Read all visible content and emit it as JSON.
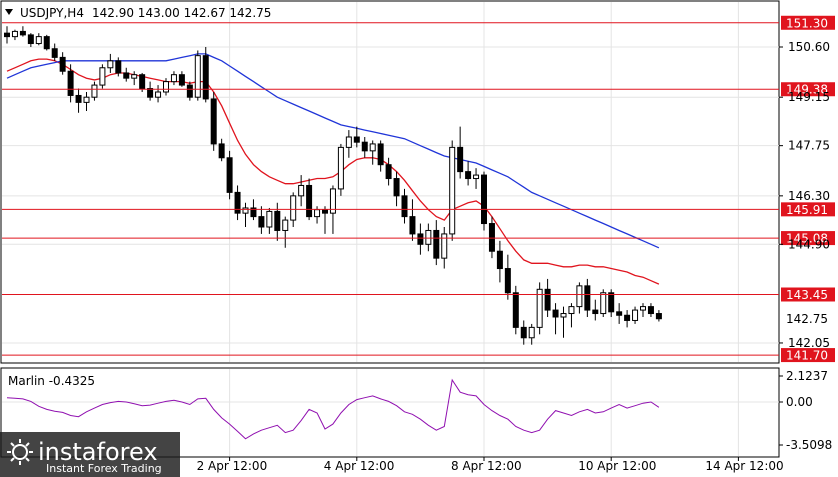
{
  "header": {
    "symbol": "USDJPY,H4",
    "ohlc": "142.90 143.00 142.67 142.75"
  },
  "indicator": {
    "label": "Marlin -0.4325",
    "scale_labels": [
      "2.1237",
      "0.00",
      "-3.5098"
    ],
    "range": [
      -3.5098,
      2.1237
    ]
  },
  "watermark": {
    "brand": "instaforex",
    "tagline": "Instant Forex Trading"
  },
  "chart_data": {
    "type": "candlestick",
    "title": "",
    "ylim": [
      141.5,
      151.9
    ],
    "y_tick_labels": [
      "150.60",
      "149.15",
      "147.75",
      "146.30",
      "144.90",
      "142.05"
    ],
    "x_tick_labels": [
      "2 Apr 12:00",
      "4 Apr 12:00",
      "8 Apr 12:00",
      "10 Apr 12:00",
      "14 Apr 12:00"
    ],
    "x_tick_index": [
      28,
      44,
      60,
      76,
      92
    ],
    "current_price": 142.75,
    "levels": [
      {
        "value": 151.3,
        "label": "151.30",
        "color": "#e0141e"
      },
      {
        "value": 149.38,
        "label": "149.38",
        "color": "#e0141e"
      },
      {
        "value": 145.91,
        "label": "145.91",
        "color": "#e0141e"
      },
      {
        "value": 145.08,
        "label": "145.08",
        "color": "#e0141e"
      },
      {
        "value": 143.45,
        "label": "143.45",
        "color": "#e0141e"
      },
      {
        "value": 141.7,
        "label": "141.70",
        "color": "#e0141e"
      }
    ],
    "candles": [
      [
        151.0,
        151.2,
        150.7,
        150.9
      ],
      [
        150.9,
        151.1,
        150.8,
        151.05
      ],
      [
        151.05,
        151.2,
        150.9,
        150.95
      ],
      [
        150.95,
        151.0,
        150.6,
        150.7
      ],
      [
        150.7,
        151.0,
        150.65,
        150.9
      ],
      [
        150.9,
        150.95,
        150.5,
        150.55
      ],
      [
        150.55,
        150.7,
        150.2,
        150.3
      ],
      [
        150.3,
        150.45,
        149.8,
        149.9
      ],
      [
        149.9,
        150.1,
        149.0,
        149.2
      ],
      [
        149.2,
        149.4,
        148.7,
        149.0
      ],
      [
        149.0,
        149.3,
        148.75,
        149.15
      ],
      [
        149.15,
        149.6,
        149.05,
        149.5
      ],
      [
        149.5,
        150.1,
        149.4,
        150.0
      ],
      [
        150.0,
        150.4,
        149.85,
        150.2
      ],
      [
        150.2,
        150.3,
        149.75,
        149.85
      ],
      [
        149.85,
        150.0,
        149.6,
        149.7
      ],
      [
        149.7,
        149.9,
        149.5,
        149.8
      ],
      [
        149.8,
        149.85,
        149.3,
        149.4
      ],
      [
        149.4,
        149.6,
        149.05,
        149.15
      ],
      [
        149.15,
        149.5,
        149.0,
        149.3
      ],
      [
        149.3,
        149.7,
        149.2,
        149.6
      ],
      [
        149.6,
        149.9,
        149.5,
        149.8
      ],
      [
        149.8,
        149.9,
        149.45,
        149.5
      ],
      [
        149.5,
        149.6,
        149.05,
        149.15
      ],
      [
        149.15,
        150.5,
        149.05,
        150.35
      ],
      [
        150.35,
        150.6,
        149.0,
        149.1
      ],
      [
        149.1,
        149.3,
        147.6,
        147.8
      ],
      [
        147.8,
        147.95,
        147.3,
        147.4
      ],
      [
        147.4,
        147.6,
        146.2,
        146.4
      ],
      [
        146.4,
        146.6,
        145.6,
        145.8
      ],
      [
        145.8,
        146.1,
        145.4,
        145.95
      ],
      [
        145.95,
        146.2,
        145.6,
        145.7
      ],
      [
        145.7,
        146.0,
        145.2,
        145.4
      ],
      [
        145.4,
        145.95,
        145.2,
        145.85
      ],
      [
        145.85,
        146.1,
        145.0,
        145.3
      ],
      [
        145.3,
        145.7,
        144.8,
        145.6
      ],
      [
        145.6,
        146.4,
        145.4,
        146.3
      ],
      [
        146.3,
        146.9,
        146.0,
        146.6
      ],
      [
        146.6,
        146.8,
        145.6,
        145.7
      ],
      [
        145.7,
        146.0,
        145.5,
        145.9
      ],
      [
        145.9,
        146.0,
        145.2,
        145.8
      ],
      [
        145.8,
        146.6,
        145.2,
        146.5
      ],
      [
        146.5,
        147.8,
        146.3,
        147.7
      ],
      [
        147.7,
        148.2,
        147.4,
        148.0
      ],
      [
        148.0,
        148.3,
        147.7,
        147.85
      ],
      [
        147.85,
        148.0,
        147.4,
        147.6
      ],
      [
        147.6,
        147.9,
        147.2,
        147.8
      ],
      [
        147.8,
        147.9,
        147.0,
        147.2
      ],
      [
        147.2,
        147.4,
        146.6,
        146.8
      ],
      [
        146.8,
        147.0,
        146.0,
        146.3
      ],
      [
        146.3,
        146.5,
        145.5,
        145.7
      ],
      [
        145.7,
        146.2,
        145.0,
        145.2
      ],
      [
        145.2,
        145.5,
        144.6,
        144.9
      ],
      [
        144.9,
        145.5,
        144.7,
        145.3
      ],
      [
        145.3,
        145.6,
        144.3,
        144.5
      ],
      [
        144.5,
        145.4,
        144.2,
        145.2
      ],
      [
        145.2,
        147.9,
        145.0,
        147.7
      ],
      [
        147.7,
        148.3,
        146.8,
        147.0
      ],
      [
        147.0,
        147.3,
        146.6,
        146.8
      ],
      [
        146.8,
        147.1,
        146.5,
        146.9
      ],
      [
        146.9,
        147.0,
        145.3,
        145.5
      ],
      [
        145.5,
        145.7,
        144.5,
        144.7
      ],
      [
        144.7,
        145.0,
        143.8,
        144.2
      ],
      [
        144.2,
        144.6,
        143.3,
        143.5
      ],
      [
        143.5,
        143.7,
        142.3,
        142.5
      ],
      [
        142.5,
        142.7,
        142.0,
        142.2
      ],
      [
        142.2,
        142.6,
        142.0,
        142.5
      ],
      [
        142.5,
        143.8,
        142.3,
        143.6
      ],
      [
        143.6,
        143.9,
        142.8,
        143.0
      ],
      [
        143.0,
        143.2,
        142.3,
        142.8
      ],
      [
        142.8,
        143.1,
        142.2,
        142.9
      ],
      [
        142.9,
        143.2,
        142.5,
        143.1
      ],
      [
        143.1,
        143.8,
        142.9,
        143.7
      ],
      [
        143.7,
        143.9,
        142.8,
        143.0
      ],
      [
        143.0,
        143.3,
        142.7,
        142.9
      ],
      [
        142.9,
        143.6,
        142.8,
        143.5
      ],
      [
        143.5,
        143.6,
        142.8,
        142.95
      ],
      [
        142.95,
        143.2,
        142.6,
        142.85
      ],
      [
        142.85,
        143.0,
        142.5,
        142.7
      ],
      [
        142.7,
        143.1,
        142.6,
        143.0
      ],
      [
        143.0,
        143.2,
        142.8,
        143.1
      ],
      [
        143.1,
        143.2,
        142.8,
        142.9
      ],
      [
        142.9,
        143.0,
        142.67,
        142.75
      ]
    ],
    "series": [
      {
        "name": "",
        "color": "#e0141e",
        "values": [
          149.9,
          150.0,
          150.1,
          150.2,
          150.25,
          150.25,
          150.2,
          150.1,
          149.95,
          149.8,
          149.7,
          149.65,
          149.7,
          149.8,
          149.85,
          149.85,
          149.8,
          149.75,
          149.7,
          149.65,
          149.6,
          149.6,
          149.6,
          149.55,
          149.6,
          149.6,
          149.3,
          148.9,
          148.4,
          147.9,
          147.5,
          147.2,
          147.0,
          146.85,
          146.75,
          146.65,
          146.65,
          146.7,
          146.75,
          146.8,
          146.8,
          146.85,
          147.0,
          147.2,
          147.35,
          147.4,
          147.4,
          147.35,
          147.2,
          147.0,
          146.75,
          146.45,
          146.15,
          145.9,
          145.7,
          145.6,
          145.9,
          146.0,
          146.1,
          146.15,
          146.0,
          145.7,
          145.35,
          145.0,
          144.7,
          144.45,
          144.35,
          144.35,
          144.35,
          144.3,
          144.25,
          144.25,
          144.3,
          144.3,
          144.25,
          144.25,
          144.2,
          144.15,
          144.1,
          144.0,
          143.95,
          143.85,
          143.75
        ]
      },
      {
        "name": "",
        "color": "#2035d8",
        "values": [
          149.7,
          149.8,
          149.9,
          150.0,
          150.05,
          150.1,
          150.15,
          150.2,
          150.2,
          150.2,
          150.2,
          150.2,
          150.2,
          150.2,
          150.2,
          150.2,
          150.2,
          150.2,
          150.2,
          150.2,
          150.2,
          150.25,
          150.3,
          150.35,
          150.4,
          150.4,
          150.3,
          150.2,
          150.05,
          149.9,
          149.75,
          149.6,
          149.45,
          149.3,
          149.15,
          149.05,
          148.95,
          148.85,
          148.75,
          148.65,
          148.55,
          148.45,
          148.35,
          148.3,
          148.25,
          148.2,
          148.15,
          148.1,
          148.05,
          148.0,
          147.95,
          147.85,
          147.75,
          147.65,
          147.55,
          147.45,
          147.4,
          147.35,
          147.3,
          147.25,
          147.15,
          147.05,
          146.95,
          146.85,
          146.7,
          146.55,
          146.4,
          146.3,
          146.2,
          146.1,
          146.0,
          145.9,
          145.8,
          145.7,
          145.6,
          145.5,
          145.4,
          145.3,
          145.2,
          145.1,
          145.0,
          144.9,
          144.8
        ]
      }
    ],
    "oscillator": {
      "name": "Marlin",
      "color": "#9010b0",
      "values": [
        0.35,
        0.3,
        0.25,
        0.05,
        -0.35,
        -0.6,
        -0.75,
        -0.85,
        -1.1,
        -1.2,
        -0.8,
        -0.5,
        -0.2,
        -0.05,
        0.05,
        0.0,
        -0.15,
        -0.3,
        -0.25,
        -0.1,
        0.05,
        0.15,
        0.0,
        -0.2,
        0.25,
        0.3,
        -0.6,
        -1.3,
        -1.8,
        -2.4,
        -3.0,
        -2.6,
        -2.3,
        -2.1,
        -1.9,
        -2.5,
        -2.3,
        -1.5,
        -0.6,
        -0.9,
        -2.2,
        -1.8,
        -0.9,
        -0.2,
        0.2,
        0.35,
        0.5,
        0.25,
        0.05,
        -0.3,
        -0.8,
        -1.0,
        -1.4,
        -1.9,
        -2.3,
        -2.0,
        1.8,
        0.8,
        0.6,
        0.5,
        -0.2,
        -0.7,
        -1.1,
        -1.4,
        -2.0,
        -2.3,
        -2.5,
        -2.3,
        -1.4,
        -0.7,
        -0.9,
        -1.1,
        -0.8,
        -0.6,
        -0.9,
        -0.8,
        -0.5,
        -0.2,
        -0.5,
        -0.3,
        -0.1,
        0.0,
        -0.43
      ]
    }
  }
}
